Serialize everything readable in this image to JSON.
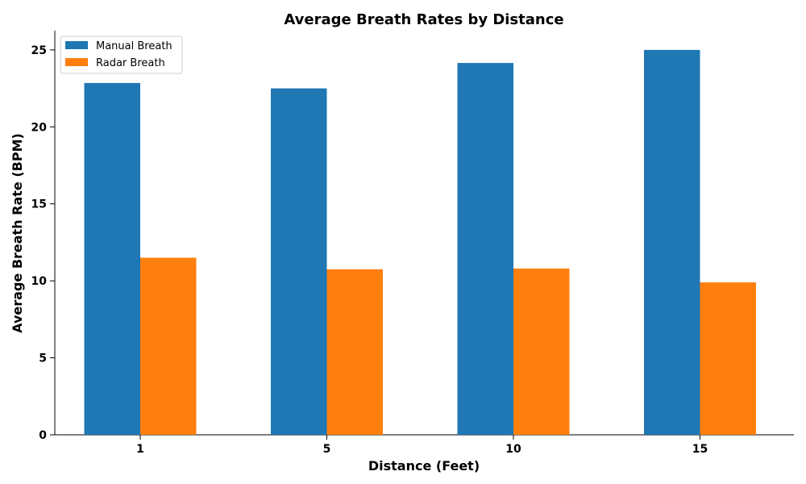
{
  "chart_data": {
    "type": "bar",
    "title": "Average Breath Rates by Distance",
    "xlabel": "Distance (Feet)",
    "ylabel": "Average Breath Rate (BPM)",
    "categories": [
      "1",
      "5",
      "10",
      "15"
    ],
    "series": [
      {
        "name": "Manual Breath",
        "values": [
          22.85,
          22.5,
          24.15,
          25.0
        ],
        "color": "#1f77b4"
      },
      {
        "name": "Radar Breath",
        "values": [
          11.5,
          10.75,
          10.8,
          9.9
        ],
        "color": "#ff7f0e"
      }
    ],
    "ylim": [
      0,
      26.25
    ],
    "yticks": [
      0,
      5,
      10,
      15,
      20,
      25
    ],
    "grid": false,
    "legend_position": "top-left"
  }
}
